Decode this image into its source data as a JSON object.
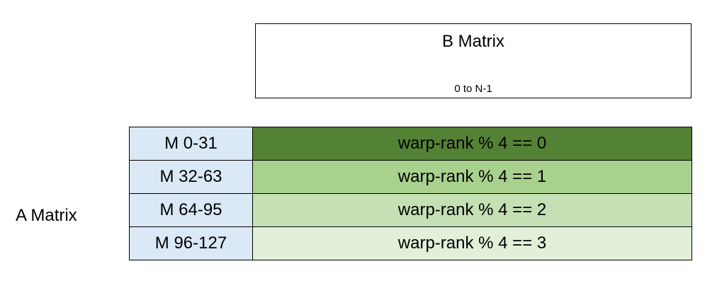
{
  "b_matrix": {
    "title": "B Matrix",
    "range": "0 to N-1"
  },
  "a_matrix": {
    "label": "A Matrix",
    "rows": [
      {
        "m_range": "M 0-31",
        "warp_rank": "warp-rank % 4 == 0",
        "m_color": "#dbe8f6",
        "warp_color": "#548235"
      },
      {
        "m_range": "M 32-63",
        "warp_rank": "warp-rank % 4 == 1",
        "m_color": "#dbe8f6",
        "warp_color": "#a9d18e"
      },
      {
        "m_range": "M 64-95",
        "warp_rank": "warp-rank % 4 == 2",
        "m_color": "#dbe8f6",
        "warp_color": "#c5e0b4"
      },
      {
        "m_range": "M 96-127",
        "warp_rank": "warp-rank % 4 == 3",
        "m_color": "#dbe8f6",
        "warp_color": "#e2f0d9"
      }
    ]
  }
}
